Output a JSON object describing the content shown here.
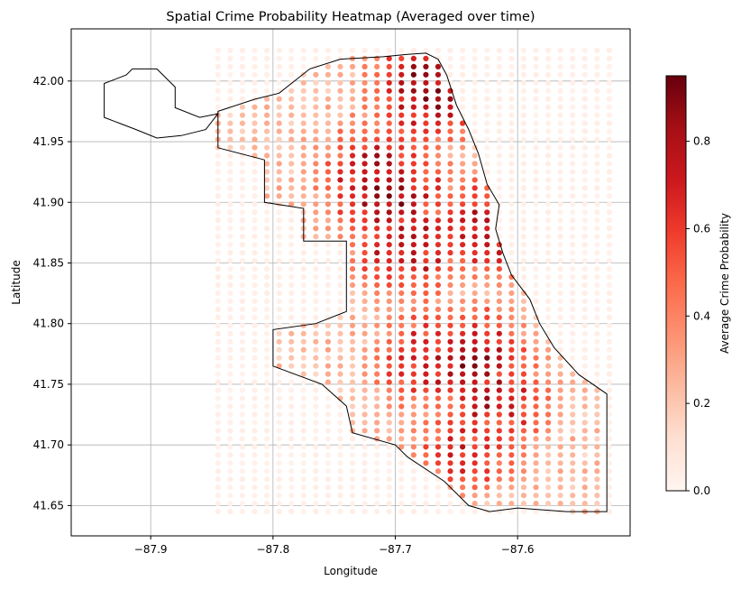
{
  "chart_data": {
    "type": "heatmap",
    "title": "Spatial Crime Probability Heatmap (Averaged over time)",
    "xlabel": "Longitude",
    "ylabel": "Latitude",
    "xlim": [
      -87.965,
      -87.508
    ],
    "ylim": [
      41.625,
      42.043
    ],
    "xticks": [
      -87.9,
      -87.8,
      -87.7,
      -87.6
    ],
    "xtick_labels": [
      "−87.9",
      "−87.8",
      "−87.7",
      "−87.6"
    ],
    "yticks": [
      41.65,
      41.7,
      41.75,
      41.8,
      41.85,
      41.9,
      41.95,
      42.0
    ],
    "ytick_labels": [
      "41.65",
      "41.70",
      "41.75",
      "41.80",
      "41.85",
      "41.90",
      "41.95",
      "42.00"
    ],
    "grid": true,
    "grid_points": {
      "lon_start": -87.845,
      "lon_step": 0.01,
      "lon_count": 33,
      "lat_start": 41.645,
      "lat_step": 0.00667,
      "lat_count": 58
    },
    "colormap": "Reds",
    "colorbar": {
      "label": "Average Crime Probability",
      "range": [
        0.0,
        0.95
      ],
      "ticks": [
        0.0,
        0.2,
        0.4,
        0.6,
        0.8
      ],
      "tick_labels": [
        "0.0",
        "0.2",
        "0.4",
        "0.6",
        "0.8"
      ]
    },
    "hotspots": [
      {
        "lon": -87.672,
        "lat": 41.995,
        "value": 0.93
      },
      {
        "lon": -87.705,
        "lat": 41.905,
        "value": 0.9
      },
      {
        "lon": -87.715,
        "lat": 41.925,
        "value": 0.82
      },
      {
        "lon": -87.69,
        "lat": 41.865,
        "value": 0.85
      },
      {
        "lon": -87.64,
        "lat": 41.77,
        "value": 0.88
      },
      {
        "lon": -87.67,
        "lat": 41.77,
        "value": 0.8
      },
      {
        "lon": -87.62,
        "lat": 41.74,
        "value": 0.82
      },
      {
        "lon": -87.64,
        "lat": 41.7,
        "value": 0.72
      },
      {
        "lon": -87.62,
        "lat": 41.88,
        "value": 0.86
      }
    ],
    "region_polygon": [
      [
        -87.845,
        41.975
      ],
      [
        -87.815,
        41.985
      ],
      [
        -87.795,
        41.99
      ],
      [
        -87.77,
        42.01
      ],
      [
        -87.745,
        42.018
      ],
      [
        -87.71,
        42.02
      ],
      [
        -87.69,
        42.022
      ],
      [
        -87.675,
        42.023
      ],
      [
        -87.665,
        42.018
      ],
      [
        -87.658,
        42.005
      ],
      [
        -87.65,
        41.98
      ],
      [
        -87.64,
        41.96
      ],
      [
        -87.632,
        41.94
      ],
      [
        -87.625,
        41.915
      ],
      [
        -87.615,
        41.898
      ],
      [
        -87.618,
        41.878
      ],
      [
        -87.612,
        41.858
      ],
      [
        -87.605,
        41.84
      ],
      [
        -87.59,
        41.82
      ],
      [
        -87.582,
        41.8
      ],
      [
        -87.57,
        41.78
      ],
      [
        -87.55,
        41.758
      ],
      [
        -87.527,
        41.742
      ],
      [
        -87.527,
        41.69
      ],
      [
        -87.527,
        41.645
      ],
      [
        -87.56,
        41.645
      ],
      [
        -87.6,
        41.648
      ],
      [
        -87.623,
        41.645
      ],
      [
        -87.64,
        41.65
      ],
      [
        -87.66,
        41.67
      ],
      [
        -87.69,
        41.69
      ],
      [
        -87.7,
        41.7
      ],
      [
        -87.735,
        41.71
      ],
      [
        -87.74,
        41.732
      ],
      [
        -87.76,
        41.75
      ],
      [
        -87.8,
        41.765
      ],
      [
        -87.8,
        41.795
      ],
      [
        -87.765,
        41.8
      ],
      [
        -87.74,
        41.81
      ],
      [
        -87.74,
        41.84
      ],
      [
        -87.74,
        41.868
      ],
      [
        -87.775,
        41.868
      ],
      [
        -87.775,
        41.895
      ],
      [
        -87.807,
        41.9
      ],
      [
        -87.807,
        41.935
      ],
      [
        -87.845,
        41.945
      ]
    ],
    "airport_polygon": [
      [
        -87.938,
        41.998
      ],
      [
        -87.92,
        42.005
      ],
      [
        -87.915,
        42.01
      ],
      [
        -87.895,
        42.01
      ],
      [
        -87.88,
        41.995
      ],
      [
        -87.88,
        41.978
      ],
      [
        -87.86,
        41.97
      ],
      [
        -87.845,
        41.973
      ],
      [
        -87.855,
        41.96
      ],
      [
        -87.875,
        41.955
      ],
      [
        -87.895,
        41.953
      ],
      [
        -87.912,
        41.96
      ],
      [
        -87.925,
        41.965
      ],
      [
        -87.938,
        41.97
      ]
    ]
  }
}
